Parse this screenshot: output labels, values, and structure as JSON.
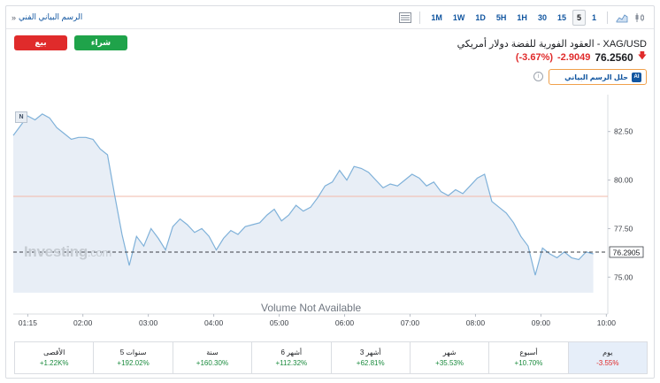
{
  "toolbar": {
    "technical_chart_link": "الرسم البياني الفني",
    "intervals": [
      "1M",
      "1W",
      "1D",
      "5H",
      "1H",
      "30",
      "15",
      "5",
      "1"
    ],
    "active_interval": "5"
  },
  "header": {
    "sell_label": "بيع",
    "buy_label": "شراء",
    "instrument_name": "XAG/USD - العقود الفورية للفضة دولار أمريكي",
    "last_price": "76.2560",
    "change": "-2.9049",
    "change_percent": "(-3.67%)",
    "ai_button_label": "حلل الرسم البياني",
    "ai_badge": "AI",
    "info_glyph": "i"
  },
  "chart": {
    "badge": "N",
    "watermark": "Investing",
    "watermark_suffix": ".com",
    "volume_text": "Volume Not Available",
    "current_price_label": "76.2905",
    "line_color": "#7fb1d9",
    "fill_color": "#e8eef6",
    "reference_line_color": "#f2b8a8"
  },
  "chart_data": {
    "type": "area",
    "title": "",
    "xlabel": "",
    "ylabel": "",
    "x_ticks": [
      "01:15",
      "02:00",
      "03:00",
      "04:00",
      "05:00",
      "06:00",
      "07:00",
      "08:00",
      "09:00",
      "10:00"
    ],
    "y_ticks": [
      "82.50",
      "80.00",
      "77.50",
      "75.00"
    ],
    "ylim": [
      73.1,
      84.4
    ],
    "reference_price": 79.16,
    "current_price": 76.2905,
    "series": [
      {
        "values": [
          [
            0,
            82.3
          ],
          [
            2,
            82.8
          ],
          [
            4,
            83.3
          ],
          [
            6,
            83.1
          ],
          [
            8,
            83.4
          ],
          [
            10,
            83.2
          ],
          [
            12,
            82.7
          ],
          [
            14,
            82.4
          ],
          [
            16,
            82.1
          ],
          [
            18,
            82.2
          ],
          [
            20,
            82.2
          ],
          [
            22,
            82.1
          ],
          [
            24,
            81.6
          ],
          [
            26,
            81.3
          ],
          [
            28,
            79.2
          ],
          [
            30,
            77.2
          ],
          [
            32,
            75.6
          ],
          [
            34,
            77.1
          ],
          [
            36,
            76.6
          ],
          [
            38,
            77.5
          ],
          [
            40,
            77.0
          ],
          [
            42,
            76.4
          ],
          [
            44,
            77.6
          ],
          [
            46,
            78.0
          ],
          [
            48,
            77.7
          ],
          [
            50,
            77.3
          ],
          [
            52,
            77.5
          ],
          [
            54,
            77.1
          ],
          [
            56,
            76.4
          ],
          [
            58,
            77.0
          ],
          [
            60,
            77.4
          ],
          [
            62,
            77.2
          ],
          [
            64,
            77.6
          ],
          [
            66,
            77.7
          ],
          [
            68,
            77.8
          ],
          [
            70,
            78.2
          ],
          [
            72,
            78.5
          ],
          [
            74,
            77.9
          ],
          [
            76,
            78.2
          ],
          [
            78,
            78.7
          ],
          [
            80,
            78.4
          ],
          [
            82,
            78.6
          ],
          [
            84,
            79.1
          ],
          [
            86,
            79.7
          ],
          [
            88,
            79.9
          ],
          [
            90,
            80.5
          ],
          [
            92,
            80.0
          ],
          [
            94,
            80.7
          ],
          [
            96,
            80.6
          ],
          [
            98,
            80.4
          ],
          [
            100,
            80.0
          ],
          [
            102,
            79.6
          ],
          [
            104,
            79.8
          ],
          [
            106,
            79.7
          ],
          [
            108,
            80.0
          ],
          [
            110,
            80.3
          ],
          [
            112,
            80.1
          ],
          [
            114,
            79.7
          ],
          [
            116,
            79.9
          ],
          [
            118,
            79.4
          ],
          [
            120,
            79.2
          ],
          [
            122,
            79.5
          ],
          [
            124,
            79.3
          ],
          [
            126,
            79.7
          ],
          [
            128,
            80.1
          ],
          [
            130,
            80.3
          ],
          [
            132,
            78.9
          ],
          [
            134,
            78.6
          ],
          [
            136,
            78.3
          ],
          [
            138,
            77.8
          ],
          [
            140,
            77.1
          ],
          [
            142,
            76.6
          ],
          [
            144,
            75.1
          ],
          [
            146,
            76.5
          ],
          [
            148,
            76.2
          ],
          [
            150,
            76.0
          ],
          [
            152,
            76.3
          ],
          [
            154,
            76.0
          ],
          [
            156,
            75.9
          ],
          [
            158,
            76.3
          ],
          [
            160,
            76.2
          ]
        ]
      }
    ]
  },
  "performance": [
    {
      "label": "يوم",
      "value": "-3.55%",
      "sign": "neg",
      "active": true
    },
    {
      "label": "أسبوع",
      "value": "+10.70%",
      "sign": "pos",
      "active": false
    },
    {
      "label": "شهر",
      "value": "+35.53%",
      "sign": "pos",
      "active": false
    },
    {
      "label": "3 أشهر",
      "value": "+62.81%",
      "sign": "pos",
      "active": false
    },
    {
      "label": "6 أشهر",
      "value": "+112.32%",
      "sign": "pos",
      "active": false
    },
    {
      "label": "سنة",
      "value": "+160.30%",
      "sign": "pos",
      "active": false
    },
    {
      "label": "5 سنوات",
      "value": "+192.02%",
      "sign": "pos",
      "active": false
    },
    {
      "label": "الأقصى",
      "value": "+1.22K%",
      "sign": "pos",
      "active": false
    }
  ]
}
